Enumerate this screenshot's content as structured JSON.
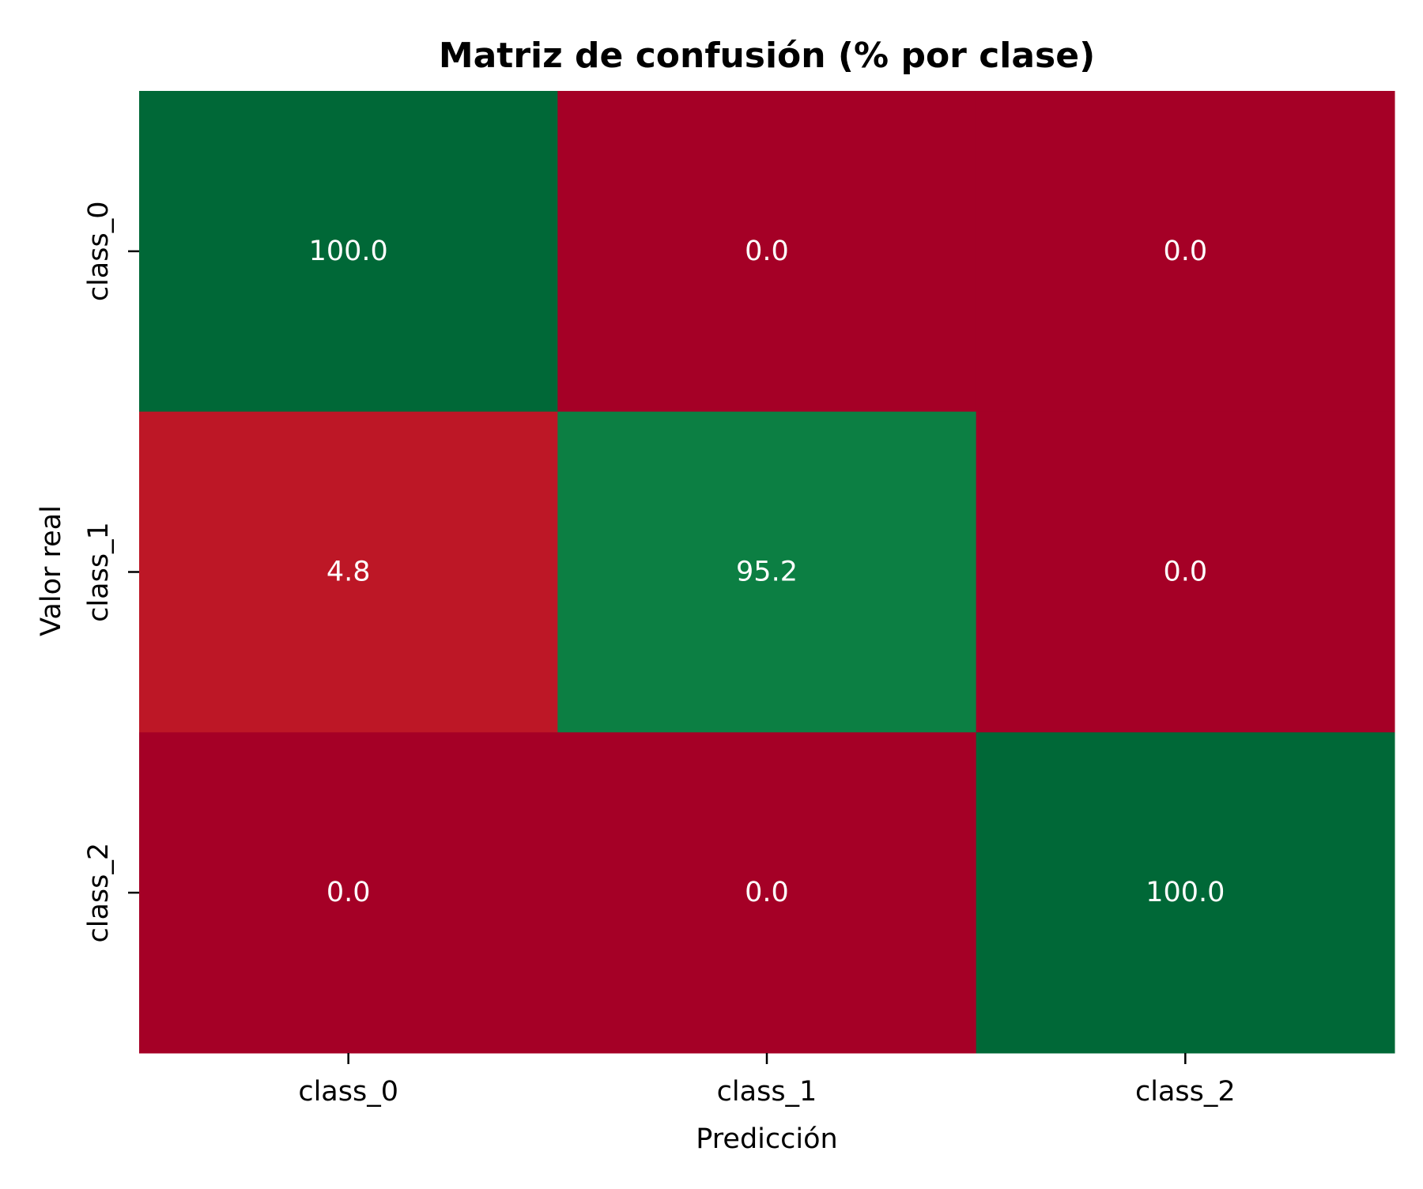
{
  "chart_data": {
    "type": "heatmap",
    "title": "Matriz de confusión (% por clase)",
    "xlabel": "Predicción",
    "ylabel": "Valor real",
    "x_categories": [
      "class_0",
      "class_1",
      "class_2"
    ],
    "y_categories": [
      "class_0",
      "class_1",
      "class_2"
    ],
    "values": [
      [
        100.0,
        0.0,
        0.0
      ],
      [
        4.8,
        95.2,
        0.0
      ],
      [
        0.0,
        0.0,
        100.0
      ]
    ],
    "value_labels": [
      [
        "100.0",
        "0.0",
        "0.0"
      ],
      [
        "4.8",
        "95.2",
        "0.0"
      ],
      [
        "0.0",
        "0.0",
        "100.0"
      ]
    ],
    "colormap": "RdYlGn",
    "vmin": 0,
    "vmax": 100,
    "colorbar": false,
    "colors": {
      "low": "#a50026",
      "high": "#006837",
      "annotation_text": "#ffffff",
      "axis_text": "#000000"
    }
  }
}
